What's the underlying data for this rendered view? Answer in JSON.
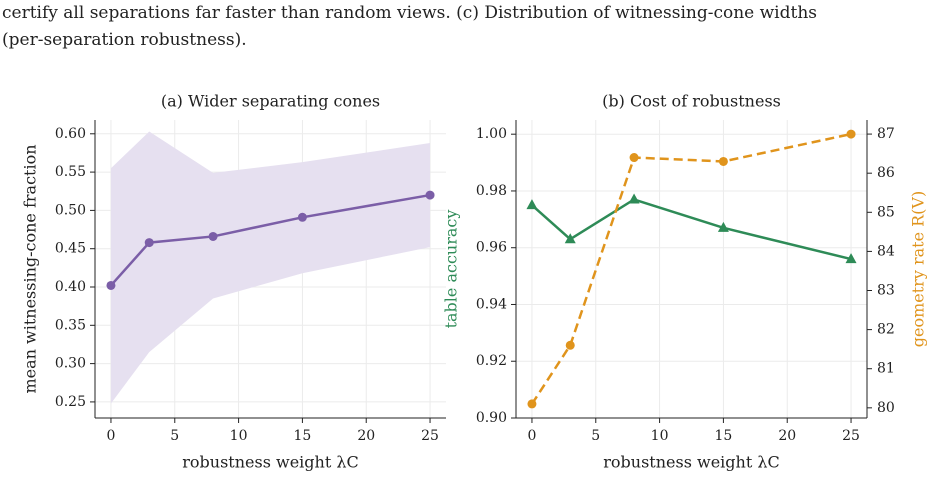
{
  "caption": [
    "certify all separations far faster than random views. (c) Distribution of witnessing-cone widths",
    "(per-separation robustness)."
  ],
  "chart_data": [
    {
      "type": "line",
      "title": "(a) Wider separating cones",
      "xlabel": "robustness weight λC",
      "ylabel": "mean witnessing-cone fraction",
      "x": [
        0,
        3,
        8,
        15,
        25
      ],
      "series": [
        {
          "color": "#7b5ea7",
          "marker": "circle",
          "values": [
            0.402,
            0.458,
            0.466,
            0.491,
            0.52
          ],
          "band_lower": [
            0.248,
            0.315,
            0.385,
            0.418,
            0.452
          ],
          "band_upper": [
            0.555,
            0.603,
            0.549,
            0.563,
            0.588
          ],
          "band_color": "#e6e0f0"
        }
      ],
      "xlim": [
        -1.25,
        26.25
      ],
      "xticks": [
        0,
        5,
        10,
        15,
        20,
        25
      ],
      "ylim": [
        0.229,
        0.618
      ],
      "yticks": [
        0.25,
        {
          "value": 0.3,
          "label": "0.30"
        },
        0.35,
        {
          "value": 0.4,
          "label": "0.40"
        },
        0.45,
        {
          "value": 0.5,
          "label": "0.50"
        },
        0.55,
        {
          "value": 0.6,
          "label": "0.60"
        }
      ],
      "grid": true
    },
    {
      "type": "line",
      "title": "(b) Cost of robustness",
      "xlabel": "robustness weight λC",
      "ylabel": "table accuracy",
      "y2label": "geometry rate R(V)",
      "x": [
        0,
        3,
        8,
        15,
        25
      ],
      "series": [
        {
          "color": "#2e8b57",
          "marker": "triangle",
          "values": [
            0.975,
            0.963,
            0.977,
            0.967,
            0.956
          ]
        },
        {
          "color": "#e0941c",
          "marker": "circle",
          "dashed": true,
          "axis": "y2",
          "values": [
            80.1,
            81.6,
            86.4,
            86.3,
            87.0
          ]
        }
      ],
      "xlim": [
        -1.25,
        26.25
      ],
      "xticks": [
        0,
        5,
        10,
        15,
        20,
        25
      ],
      "ylim": [
        0.9,
        1.005
      ],
      "yticks": [
        {
          "value": 0.9,
          "label": "0.90"
        },
        0.92,
        0.94,
        0.96,
        0.98,
        {
          "value": 1.0,
          "label": "1.00"
        }
      ],
      "y2lim": [
        79.74,
        87.36
      ],
      "y2ticks": [
        80,
        81,
        82,
        83,
        84,
        85,
        86,
        87
      ],
      "grid": true
    }
  ]
}
